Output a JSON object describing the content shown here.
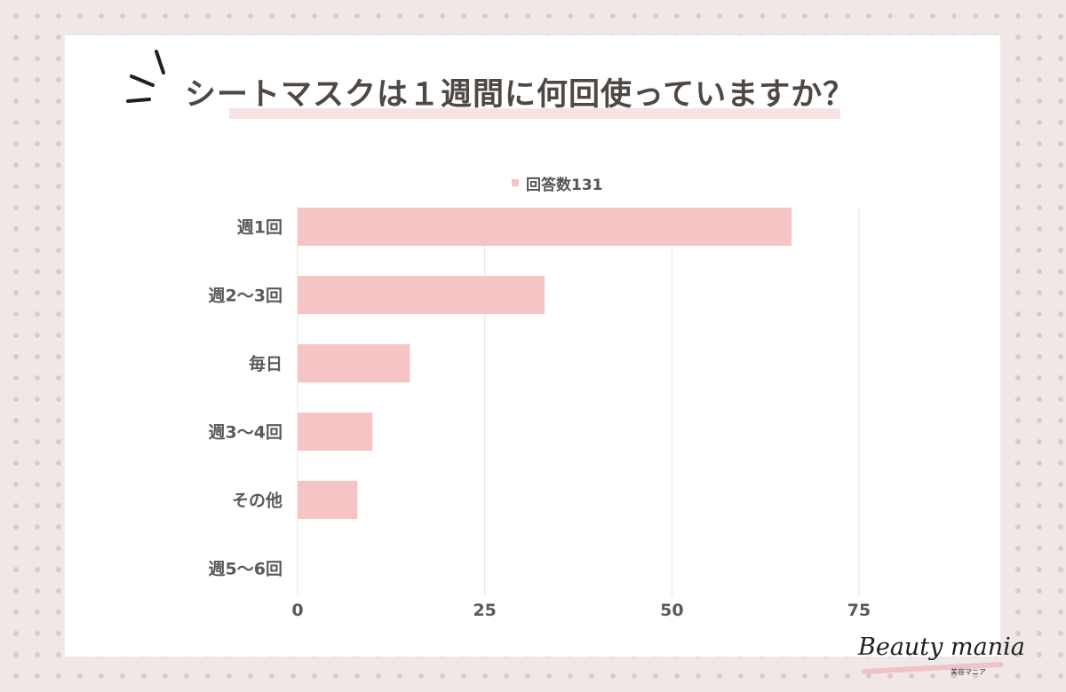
{
  "title": "シートマスクは１週間に何回使っていますか？",
  "brand": {
    "name": "Beauty mania",
    "sub": "美容マニア"
  },
  "colors": {
    "bar": "#f7c4c6",
    "grid": "#e4e4e4",
    "label": "#5a5a5a",
    "title": "#4e4844"
  },
  "chart_data": {
    "type": "bar",
    "orientation": "horizontal",
    "categories": [
      "週1回",
      "週2〜3回",
      "毎日",
      "週3〜4回",
      "その他",
      "週5〜6回"
    ],
    "series": [
      {
        "name": "回答数131",
        "values": [
          66,
          33,
          15,
          10,
          8,
          0
        ]
      }
    ],
    "xlim": [
      0,
      75
    ],
    "xticks": [
      0,
      25,
      50,
      75
    ],
    "grid": true,
    "legend": "top"
  }
}
